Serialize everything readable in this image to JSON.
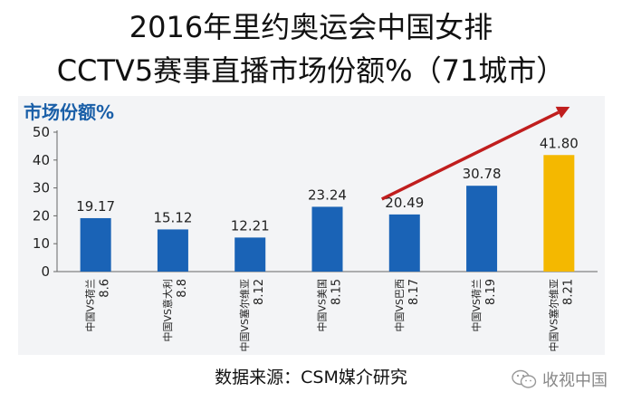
{
  "title_line1": "2016年里约奥运会中国女排",
  "title_line2": "CCTV5赛事直播市场份额%（71城市）",
  "source": "数据来源：CSM媒介研究",
  "watermark": "收视中国",
  "chart_data": {
    "type": "bar",
    "ylabel": "市场份额%",
    "ylim": [
      0,
      50
    ],
    "yticks": [
      0,
      10,
      20,
      30,
      40,
      50
    ],
    "categories": [
      {
        "match": "中国VS荷兰",
        "date": "8.6"
      },
      {
        "match": "中国VS意大利",
        "date": "8.8"
      },
      {
        "match": "中国VS塞尔维亚",
        "date": "8.12"
      },
      {
        "match": "中国VS美国",
        "date": "8.15"
      },
      {
        "match": "中国VS巴西",
        "date": "8.17"
      },
      {
        "match": "中国VS荷兰",
        "date": "8.19"
      },
      {
        "match": "中国VS塞尔维亚",
        "date": "8.21"
      }
    ],
    "values": [
      19.17,
      15.12,
      12.21,
      23.24,
      20.49,
      30.78,
      41.8
    ],
    "value_labels": [
      "19.17",
      "15.12",
      "12.21",
      "23.24",
      "20.49",
      "30.78",
      "41.80"
    ],
    "colors": {
      "default": "#1a63b6",
      "highlight": "#f4b800",
      "axis_title": "#1a5fa8",
      "arrow": "#c01e1e"
    },
    "highlight_index": 6,
    "grid": false,
    "annotation": "trend-arrow"
  }
}
